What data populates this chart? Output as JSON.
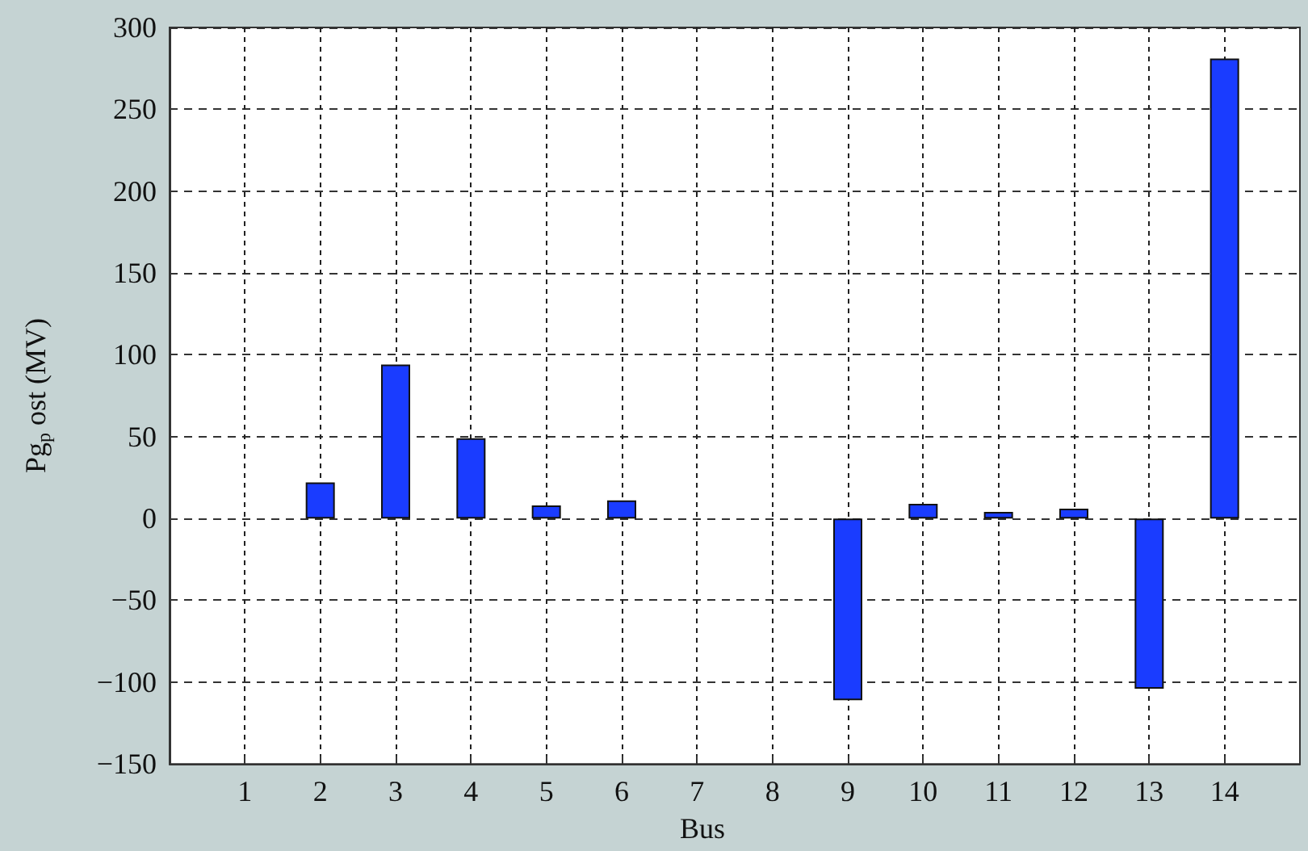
{
  "chart_data": {
    "type": "bar",
    "xlabel": "Bus",
    "ylabel": "Pg$_{p}$ ost (MV)",
    "x": [
      2,
      3,
      4,
      5,
      6,
      9,
      10,
      11,
      12,
      13,
      14
    ],
    "values": [
      22,
      94,
      49,
      8,
      11,
      -111,
      9,
      4,
      6,
      -104,
      281
    ],
    "color": "#1a3cff",
    "xlim": [
      0,
      15
    ],
    "xticks": [
      1,
      2,
      3,
      4,
      5,
      6,
      7,
      8,
      9,
      10,
      11,
      12,
      13,
      14
    ],
    "ylim": [
      -150,
      300
    ],
    "yticks": [
      -150,
      -100,
      -50,
      0,
      50,
      100,
      150,
      200,
      250,
      300
    ],
    "grid": true
  }
}
